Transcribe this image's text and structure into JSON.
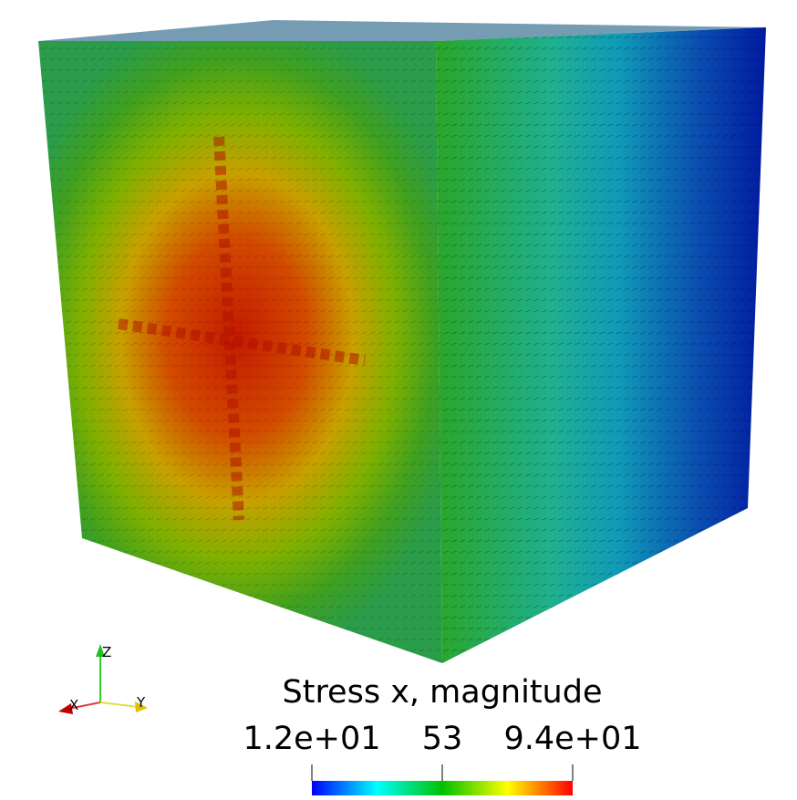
{
  "colorbar": {
    "title": "Stress x, magnitude",
    "labels": [
      "1.2e+01",
      "53",
      "9.4e+01"
    ]
  },
  "axes_triad": {
    "x": "X",
    "y": "Y",
    "z": "Z"
  }
}
